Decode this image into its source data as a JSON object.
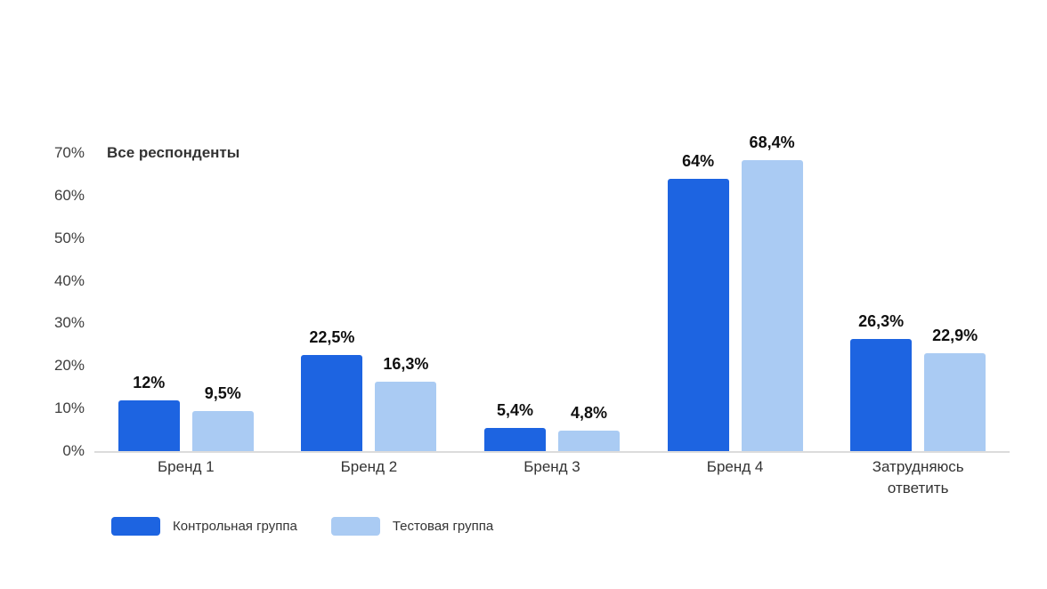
{
  "chart_data": {
    "type": "bar",
    "title": "Все респонденты",
    "categories": [
      "Бренд 1",
      "Бренд 2",
      "Бренд 3",
      "Бренд 4",
      "Затрудняюсь ответить"
    ],
    "series": [
      {
        "name": "Контрольная группа",
        "color": "#1d64e1",
        "values": [
          12,
          22.5,
          5.4,
          64,
          26.3
        ],
        "labels": [
          "12%",
          "22,5%",
          "5,4%",
          "64%",
          "26,3%"
        ]
      },
      {
        "name": "Тестовая группа",
        "color": "#aacbf3",
        "values": [
          9.5,
          16.3,
          4.8,
          68.4,
          22.9
        ],
        "labels": [
          "9,5%",
          "16,3%",
          "4,8%",
          "68,4%",
          "22,9%"
        ]
      }
    ],
    "y_ticks": [
      {
        "value": 0,
        "label": "0%"
      },
      {
        "value": 10,
        "label": "10%"
      },
      {
        "value": 20,
        "label": "20%"
      },
      {
        "value": 30,
        "label": "30%"
      },
      {
        "value": 40,
        "label": "40%"
      },
      {
        "value": 50,
        "label": "50%"
      },
      {
        "value": 60,
        "label": "60%"
      },
      {
        "value": 70,
        "label": "70%"
      }
    ],
    "ylim": [
      0,
      70
    ],
    "grid": false,
    "legend_position": "bottom-left",
    "axis_line_color": "#dcdcdc"
  }
}
